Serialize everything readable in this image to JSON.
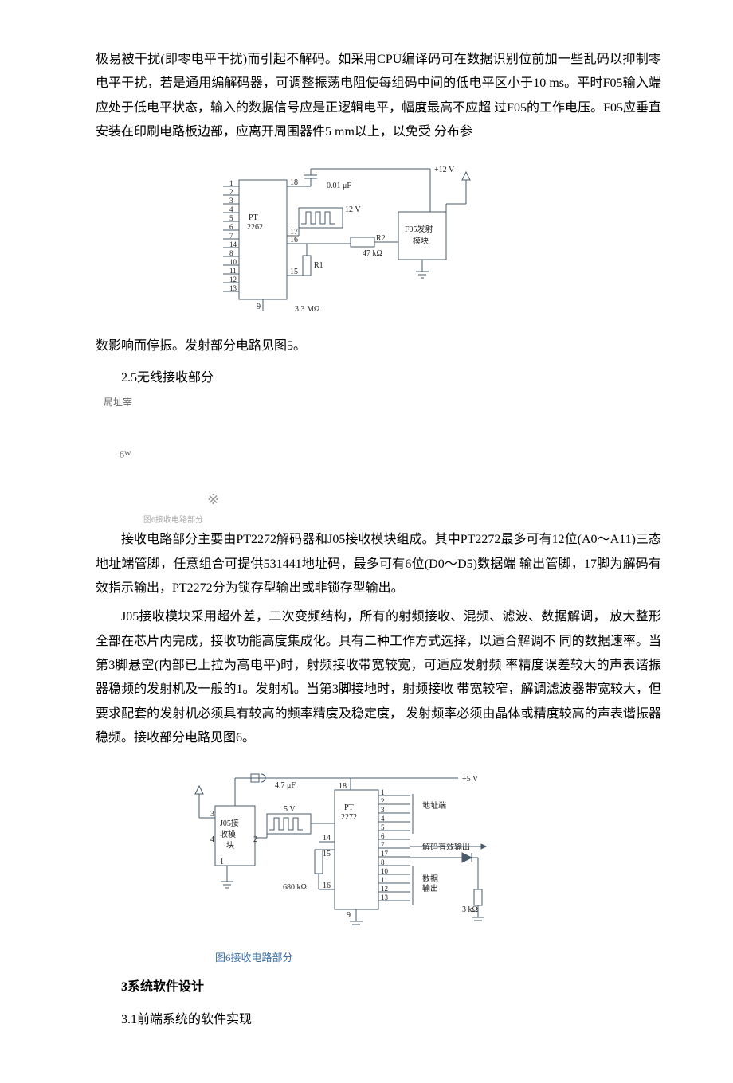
{
  "para1": "极易被干扰(即零电平干扰)而引起不解码。如采用CPU编译码可在数据识别位前加一些乱码以抑制零电平干扰，若是通用编解码器，可调整振荡电阻使每组码中间的低电平区小于10 ms。平时F05输入端应处于低电平状态，输入的数据信号应是正逻辑电平，幅度最高不应超 过F05的工作电压。F05应垂直安装在印刷电路板边部，应离开周围器件5 mm以上，以免受 分布参",
  "fig5": {
    "labels": {
      "pins_left": [
        "1",
        "2",
        "3",
        "4",
        "5",
        "6",
        "7",
        "14",
        "8",
        "10",
        "11",
        "12",
        "13"
      ],
      "pin18": "18",
      "pin17": "17",
      "pin16": "16",
      "pin15": "15",
      "pin9": "9",
      "chip": "PT\n2262",
      "module": "F05发射\n模块",
      "v12_top": "+12 V",
      "v12_mid": "12 V",
      "cap": "0.01 μF",
      "r2": "R2\n47 kΩ",
      "r1": "R1\n3.3 MΩ"
    },
    "colors": {
      "stroke": "#4a5a6a",
      "text": "#222"
    }
  },
  "para2": "数影响而停振。发射部分电路见图5。",
  "sec25": "2.5无线接收部分",
  "misc1": "局址宰",
  "misc2": "gw",
  "misc3": "※",
  "misc4": "图6接收电路部分",
  "para3": "接收电路部分主要由PT2272解码器和J05接收模块组成。其中PT2272最多可有12位(A0～A11)三态地址端管脚，任意组合可提供531441地址码，最多可有6位(D0～D5)数据端 输出管脚，17脚为解码有效指示输出，PT2272分为锁存型输出或非锁存型输出。",
  "para4": "J05接收模块采用超外差，二次变频结构，所有的射频接收、混频、滤波、数据解调， 放大整形全部在芯片内完成，接收功能高度集成化。具有二种工作方式选择，以适合解调不 同的数据速率。当第3脚悬空(内部已上拉为高电平)时，射频接收带宽较宽，可适应发射频 率精度误差较大的声表谐振器稳频的发射机及一般的1。发射机。当第3脚接地时，射频接收 带宽较窄，解调滤波器带宽较大，但要求配套的发射机必须具有较高的频率精度及稳定度， 发射频率必须由晶体或精度较高的声表谐振器稳频。接收部分电路见图6。",
  "fig6": {
    "labels": {
      "module": "J05接\n收模\n块",
      "chip": "PT\n2272",
      "v5_top": "+5 V",
      "v5_mid": "5 V",
      "cap": "4.7 μF",
      "r680": "680 kΩ",
      "r3k": "3 kΩ",
      "pin3": "3",
      "pin4": "4",
      "pin1": "1",
      "pin2": "2",
      "pin14": "14",
      "pin15": "15",
      "pin16": "16",
      "pin9": "9",
      "pin18": "18",
      "right_pins": [
        "1",
        "2",
        "3",
        "4",
        "5",
        "6",
        "7",
        "17",
        "8",
        "10",
        "11",
        "12",
        "13"
      ],
      "lbl_addr": "地址端",
      "lbl_decode": "解码有效输出",
      "lbl_data": "数据\n输出"
    },
    "colors": {
      "stroke": "#4a5a6a",
      "text": "#222"
    },
    "caption": "图6接收电路部分"
  },
  "sec3": "3系统软件设计",
  "sec31": "3.1前端系统的软件实现"
}
